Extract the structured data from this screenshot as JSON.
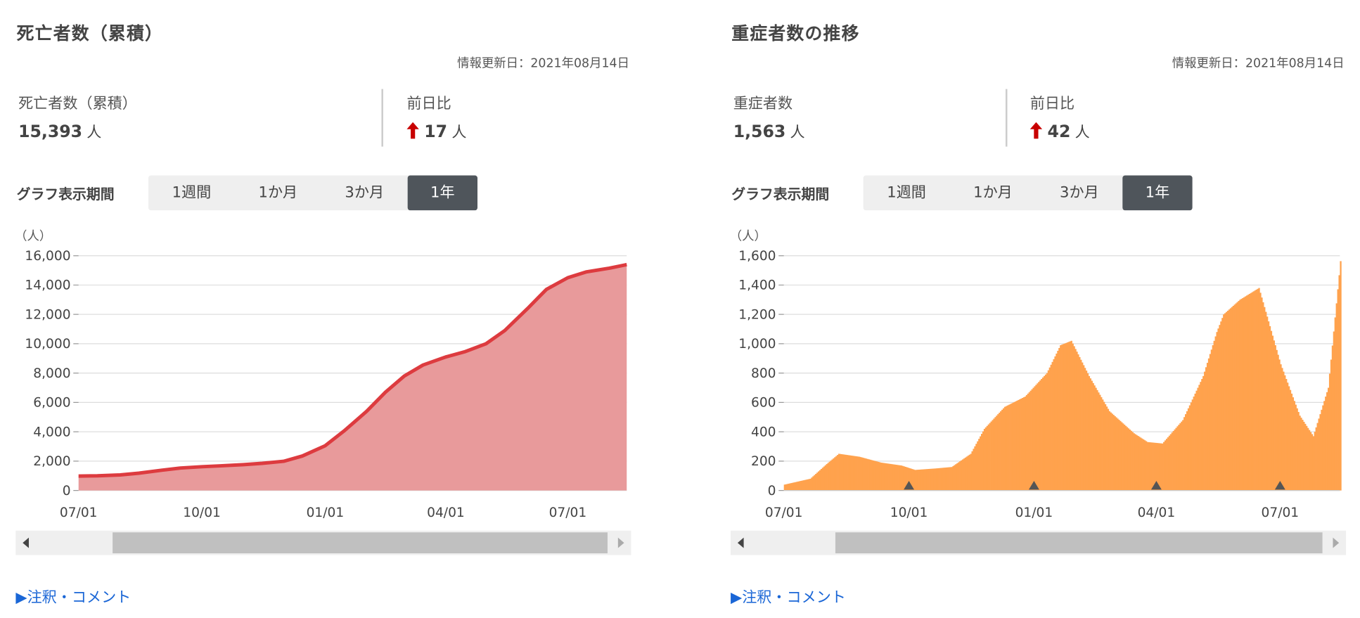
{
  "panels": [
    {
      "title": "死亡者数（累積）",
      "updated": "情報更新日：2021年08月14日",
      "stat_label": "死亡者数（累積）",
      "stat_value": "15,393",
      "stat_unit": "人",
      "diff_label": "前日比",
      "diff_value": "17",
      "diff_unit": "人",
      "period_label": "グラフ表示期間",
      "periods": [
        "1週間",
        "1か月",
        "3か月",
        "1年"
      ],
      "active_period": "1年",
      "comment_link": "▶注釈・コメント"
    },
    {
      "title": "重症者数の推移",
      "updated": "情報更新日：2021年08月14日",
      "stat_label": "重症者数",
      "stat_value": "1,563",
      "stat_unit": "人",
      "diff_label": "前日比",
      "diff_value": "42",
      "diff_unit": "人",
      "period_label": "グラフ表示期間",
      "periods": [
        "1週間",
        "1か月",
        "3か月",
        "1年"
      ],
      "active_period": "1年",
      "comment_link": "▶注釈・コメント"
    }
  ],
  "colors": {
    "deaths_line": "#dd3b3f",
    "deaths_fill": "#e89a9b",
    "severe_bar": "#ffa24d",
    "severe_bar_edge": "#f28a2e",
    "up_arrow": "#c80000",
    "grid": "#dddddd",
    "link": "#1a66d6"
  },
  "chart_data": [
    {
      "type": "area",
      "unit_label": "（人）",
      "x_ticks": [
        "07/01",
        "10/01",
        "01/01",
        "04/01",
        "07/01"
      ],
      "ylim": [
        0,
        16000
      ],
      "y_ticks": [
        "0",
        "2,000",
        "4,000",
        "6,000",
        "8,000",
        "10,000",
        "12,000",
        "14,000",
        "16,000"
      ],
      "x": [
        "2020-07-01",
        "2020-07-15",
        "2020-08-01",
        "2020-08-15",
        "2020-09-01",
        "2020-09-15",
        "2020-10-01",
        "2020-10-15",
        "2020-11-01",
        "2020-11-15",
        "2020-12-01",
        "2020-12-15",
        "2021-01-01",
        "2021-01-15",
        "2021-02-01",
        "2021-02-15",
        "2021-03-01",
        "2021-03-15",
        "2021-04-01",
        "2021-04-15",
        "2021-05-01",
        "2021-05-15",
        "2021-06-01",
        "2021-06-15",
        "2021-07-01",
        "2021-07-15",
        "2021-08-01",
        "2021-08-14"
      ],
      "values": [
        980,
        1000,
        1060,
        1180,
        1380,
        1530,
        1620,
        1680,
        1760,
        1850,
        1990,
        2350,
        3050,
        4050,
        5400,
        6700,
        7800,
        8550,
        9100,
        9450,
        10000,
        10900,
        12400,
        13700,
        14500,
        14900,
        15150,
        15393
      ]
    },
    {
      "type": "bar",
      "unit_label": "（人）",
      "x_ticks": [
        "07/01",
        "10/01",
        "01/01",
        "04/01",
        "07/01"
      ],
      "ylim": [
        0,
        1600
      ],
      "y_ticks": [
        "0",
        "200",
        "400",
        "600",
        "800",
        "1,000",
        "1,200",
        "1,400",
        "1,600"
      ],
      "x": [
        "2020-07-01",
        "2020-07-20",
        "2020-08-01",
        "2020-08-10",
        "2020-08-25",
        "2020-09-10",
        "2020-09-25",
        "2020-10-05",
        "2020-10-20",
        "2020-11-01",
        "2020-11-15",
        "2020-11-25",
        "2020-12-10",
        "2020-12-25",
        "2021-01-10",
        "2021-01-20",
        "2021-01-28",
        "2021-02-10",
        "2021-02-25",
        "2021-03-15",
        "2021-03-25",
        "2021-04-05",
        "2021-04-20",
        "2021-05-05",
        "2021-05-15",
        "2021-05-20",
        "2021-06-01",
        "2021-06-15",
        "2021-07-01",
        "2021-07-15",
        "2021-07-25",
        "2021-08-05",
        "2021-08-14"
      ],
      "values": [
        40,
        80,
        180,
        250,
        230,
        190,
        170,
        140,
        150,
        160,
        250,
        420,
        570,
        640,
        800,
        990,
        1020,
        780,
        540,
        390,
        330,
        320,
        480,
        780,
        1080,
        1200,
        1300,
        1380,
        860,
        510,
        370,
        700,
        1563
      ]
    }
  ]
}
